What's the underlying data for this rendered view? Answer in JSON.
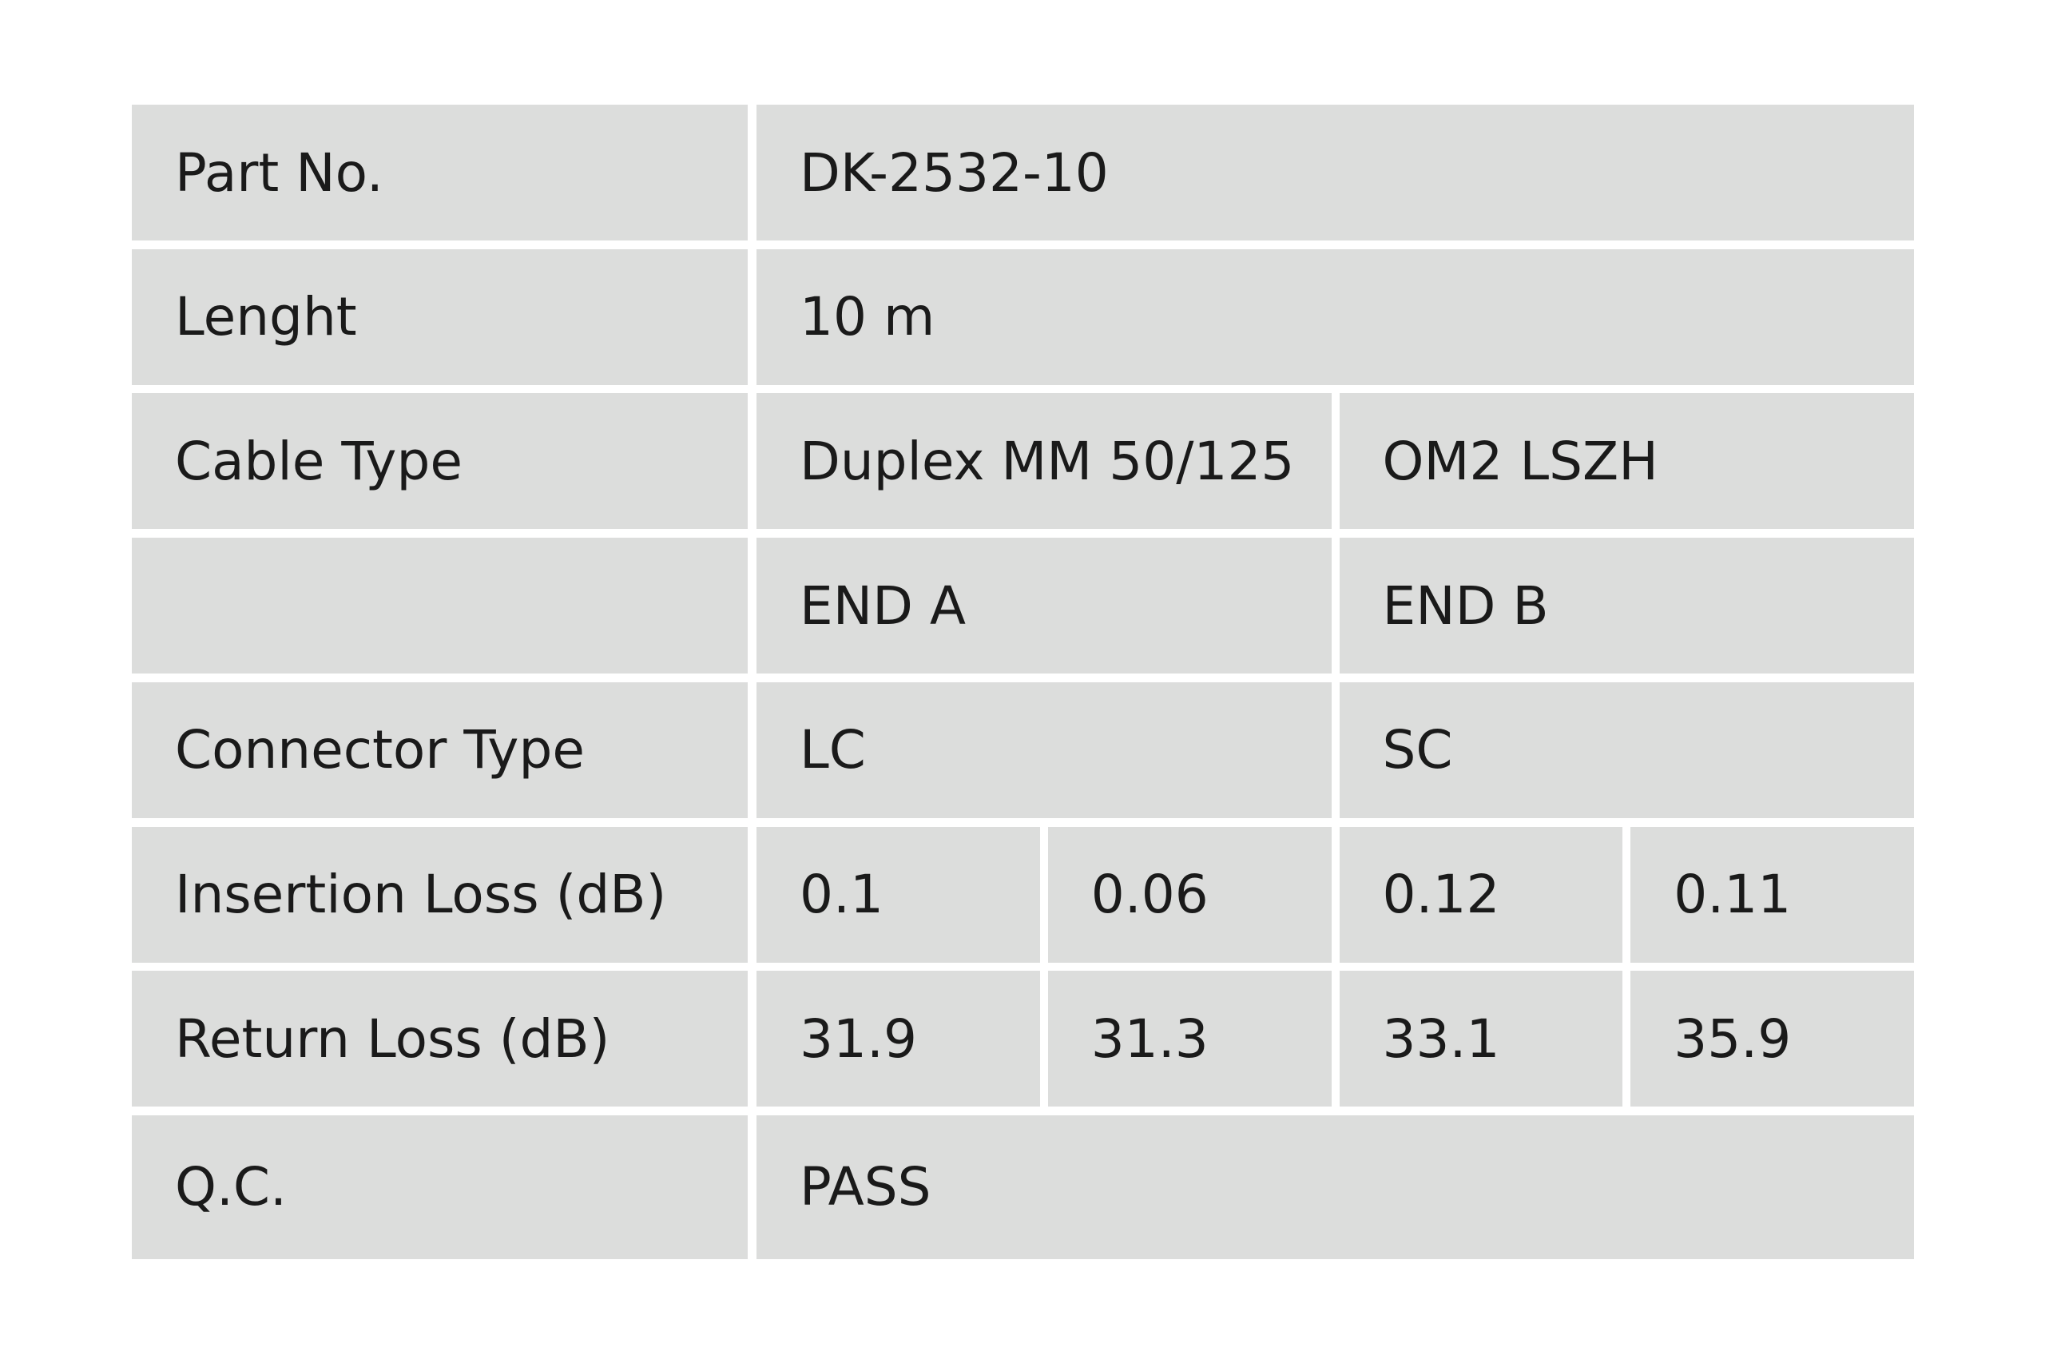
{
  "table": {
    "rows": [
      {
        "label": "Part No.",
        "cells": [
          "DK-2532-10"
        ]
      },
      {
        "label": "Lenght",
        "cells": [
          "10 m"
        ]
      },
      {
        "label": "Cable Type",
        "cells": [
          "Duplex MM 50/125",
          "OM2 LSZH"
        ]
      },
      {
        "cells": [
          "END A",
          "END B"
        ]
      },
      {
        "label": "Connector Type",
        "cells": [
          "LC",
          "SC"
        ]
      },
      {
        "label": "Insertion Loss (dB)",
        "cells": [
          "0.1",
          "0.06",
          "0.12",
          "0.11"
        ]
      },
      {
        "label": "Return Loss (dB)",
        "cells": [
          "31.9",
          "31.3",
          "33.1",
          "35.9"
        ]
      },
      {
        "label": "Q.C.",
        "cells": [
          "PASS"
        ]
      }
    ]
  }
}
